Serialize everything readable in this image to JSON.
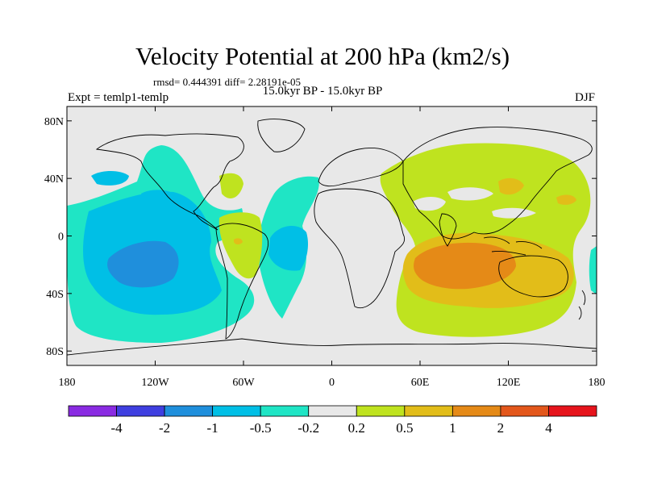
{
  "title": "Velocity Potential at 200 hPa (km2/s)",
  "stats": "rmsd= 0.444391 diff= 2.28191e-05",
  "experiment": "Expt = temlp1-temlp",
  "period": "15.0kyr BP - 15.0kyr BP",
  "season": "DJF",
  "map": {
    "lat_ticks": [
      {
        "value": 80,
        "label": "80N"
      },
      {
        "value": 40,
        "label": "40N"
      },
      {
        "value": 0,
        "label": "0"
      },
      {
        "value": -40,
        "label": "40S"
      },
      {
        "value": -80,
        "label": "80S"
      }
    ],
    "lon_ticks": [
      {
        "value": -180,
        "label": "180"
      },
      {
        "value": -120,
        "label": "120W"
      },
      {
        "value": -60,
        "label": "60W"
      },
      {
        "value": 0,
        "label": "0"
      },
      {
        "value": 60,
        "label": "60E"
      },
      {
        "value": 120,
        "label": "120E"
      },
      {
        "value": 180,
        "label": "180"
      }
    ]
  },
  "colorbar": {
    "colors": [
      "#8a2be2",
      "#3f3fe0",
      "#1f8fdc",
      "#00bfe6",
      "#1fe5c5",
      "#e8e8e8",
      "#bfe31f",
      "#e2bd19",
      "#e58a17",
      "#e3571b",
      "#e6141c"
    ],
    "labels": [
      "-4",
      "-2",
      "-1",
      "-0.5",
      "-0.2",
      "0.2",
      "0.5",
      "1",
      "2",
      "4"
    ]
  },
  "palette": {
    "ocean_bg": "#e8e8e8",
    "level_neg_02": "#1fe5c5",
    "level_neg_05": "#00bfe6",
    "level_neg_1": "#1f8fdc",
    "level_pos_02": "#bfe31f",
    "level_pos_05": "#e2bd19",
    "level_pos_1": "#e58a17"
  }
}
